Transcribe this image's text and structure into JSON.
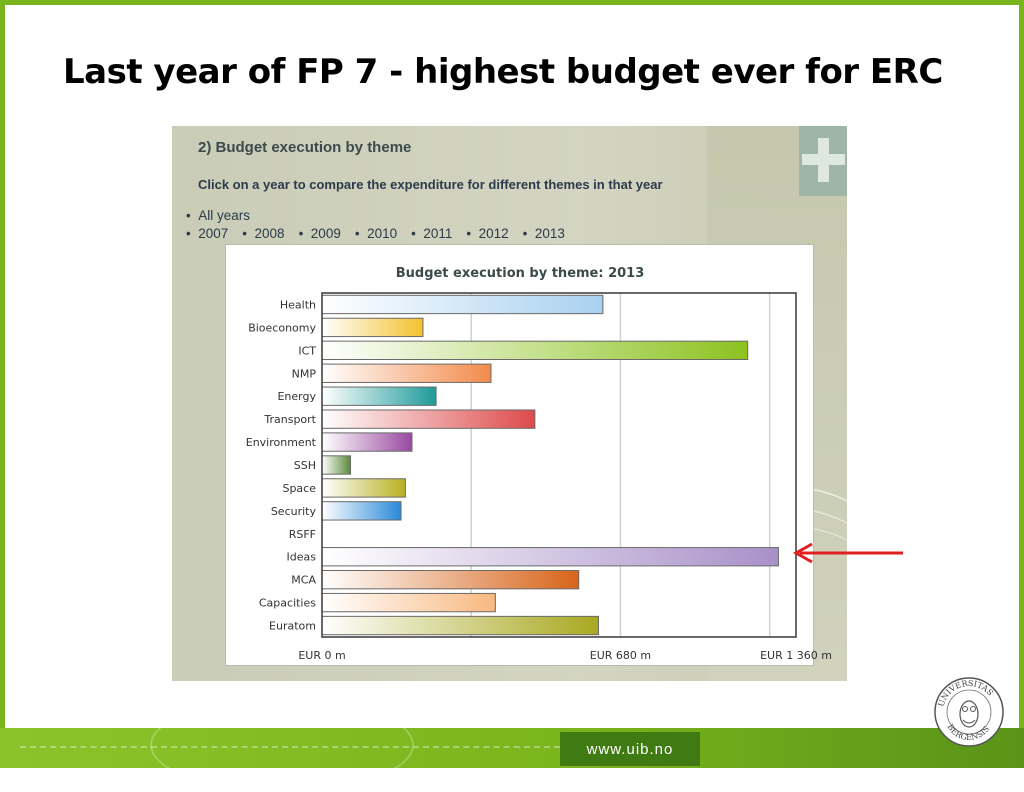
{
  "slide": {
    "title": "Last year of FP 7 -  highest budget ever for ERC",
    "footer_url": "www.uib.no",
    "seal_text": "UNIVERSITAS BERGENSIS",
    "accent_color": "#7ab51d"
  },
  "panel": {
    "heading": "2) Budget execution by theme",
    "instruction": "Click on a year to compare the expenditure for different themes in that year",
    "all_years_label": "All years",
    "years": [
      "2007",
      "2008",
      "2009",
      "2010",
      "2011",
      "2012",
      "2013"
    ],
    "expand_icon": "plus-icon"
  },
  "chart_data": {
    "type": "bar",
    "orientation": "horizontal",
    "title": "Budget execution by theme: 2013",
    "categories": [
      "Health",
      "Bioeconomy",
      "ICT",
      "NMP",
      "Energy",
      "Transport",
      "Environment",
      "SSH",
      "Space",
      "Security",
      "RSFF",
      "Ideas",
      "MCA",
      "Capacities",
      "Euratom"
    ],
    "values": [
      640,
      230,
      970,
      385,
      260,
      485,
      205,
      65,
      190,
      180,
      0,
      1040,
      585,
      395,
      630
    ],
    "unit": "EUR m",
    "xlim": [
      0,
      1080
    ],
    "x_ticks": [
      {
        "value": 0,
        "label": "EUR 0 m"
      },
      {
        "value": 340,
        "label": ""
      },
      {
        "value": 680,
        "label": "EUR 680 m"
      },
      {
        "value": 1020,
        "label": ""
      },
      {
        "value": 1360,
        "label": "EUR 1 360 m"
      }
    ],
    "grid": true,
    "colors": [
      "#a8d0f0",
      "#f2c12e",
      "#8cc21f",
      "#f28a4a",
      "#1f9a9a",
      "#de4a4a",
      "#9a4aa0",
      "#5a8a3a",
      "#b8b020",
      "#2a8ad8",
      "#cccccc",
      "#a890c8",
      "#d8641a",
      "#f8b880",
      "#a8a820"
    ],
    "highlight": {
      "category": "Ideas",
      "marker": "red-arrow"
    }
  }
}
